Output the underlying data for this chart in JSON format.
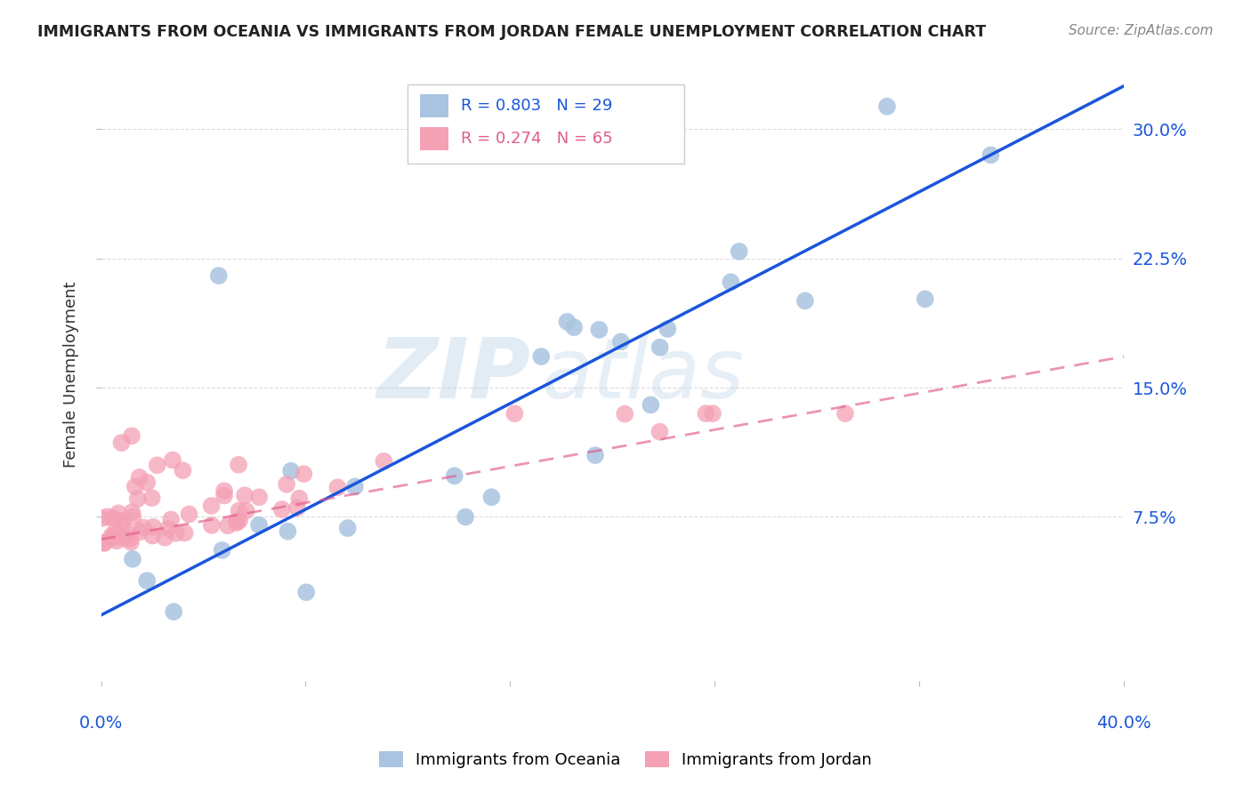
{
  "title": "IMMIGRANTS FROM OCEANIA VS IMMIGRANTS FROM JORDAN FEMALE UNEMPLOYMENT CORRELATION CHART",
  "source": "Source: ZipAtlas.com",
  "ylabel": "Female Unemployment",
  "ytick_labels": [
    "7.5%",
    "15.0%",
    "22.5%",
    "30.0%"
  ],
  "ytick_values": [
    0.075,
    0.15,
    0.225,
    0.3
  ],
  "xlim": [
    0.0,
    0.4
  ],
  "ylim": [
    -0.02,
    0.335
  ],
  "legend_blue_R": "R = 0.803",
  "legend_blue_N": "N = 29",
  "legend_pink_R": "R = 0.274",
  "legend_pink_N": "N = 65",
  "legend_label_blue": "Immigrants from Oceania",
  "legend_label_pink": "Immigrants from Jordan",
  "blue_color": "#a8c4e0",
  "blue_line_color": "#1a56db",
  "pink_color": "#f4a0b5",
  "pink_line_color": "#e05c8a",
  "watermark_zip": "ZIP",
  "watermark_atlas": "atlas",
  "blue_line_y_start": 0.018,
  "blue_line_y_end": 0.325,
  "pink_line_y_start": 0.062,
  "pink_line_y_end": 0.168
}
